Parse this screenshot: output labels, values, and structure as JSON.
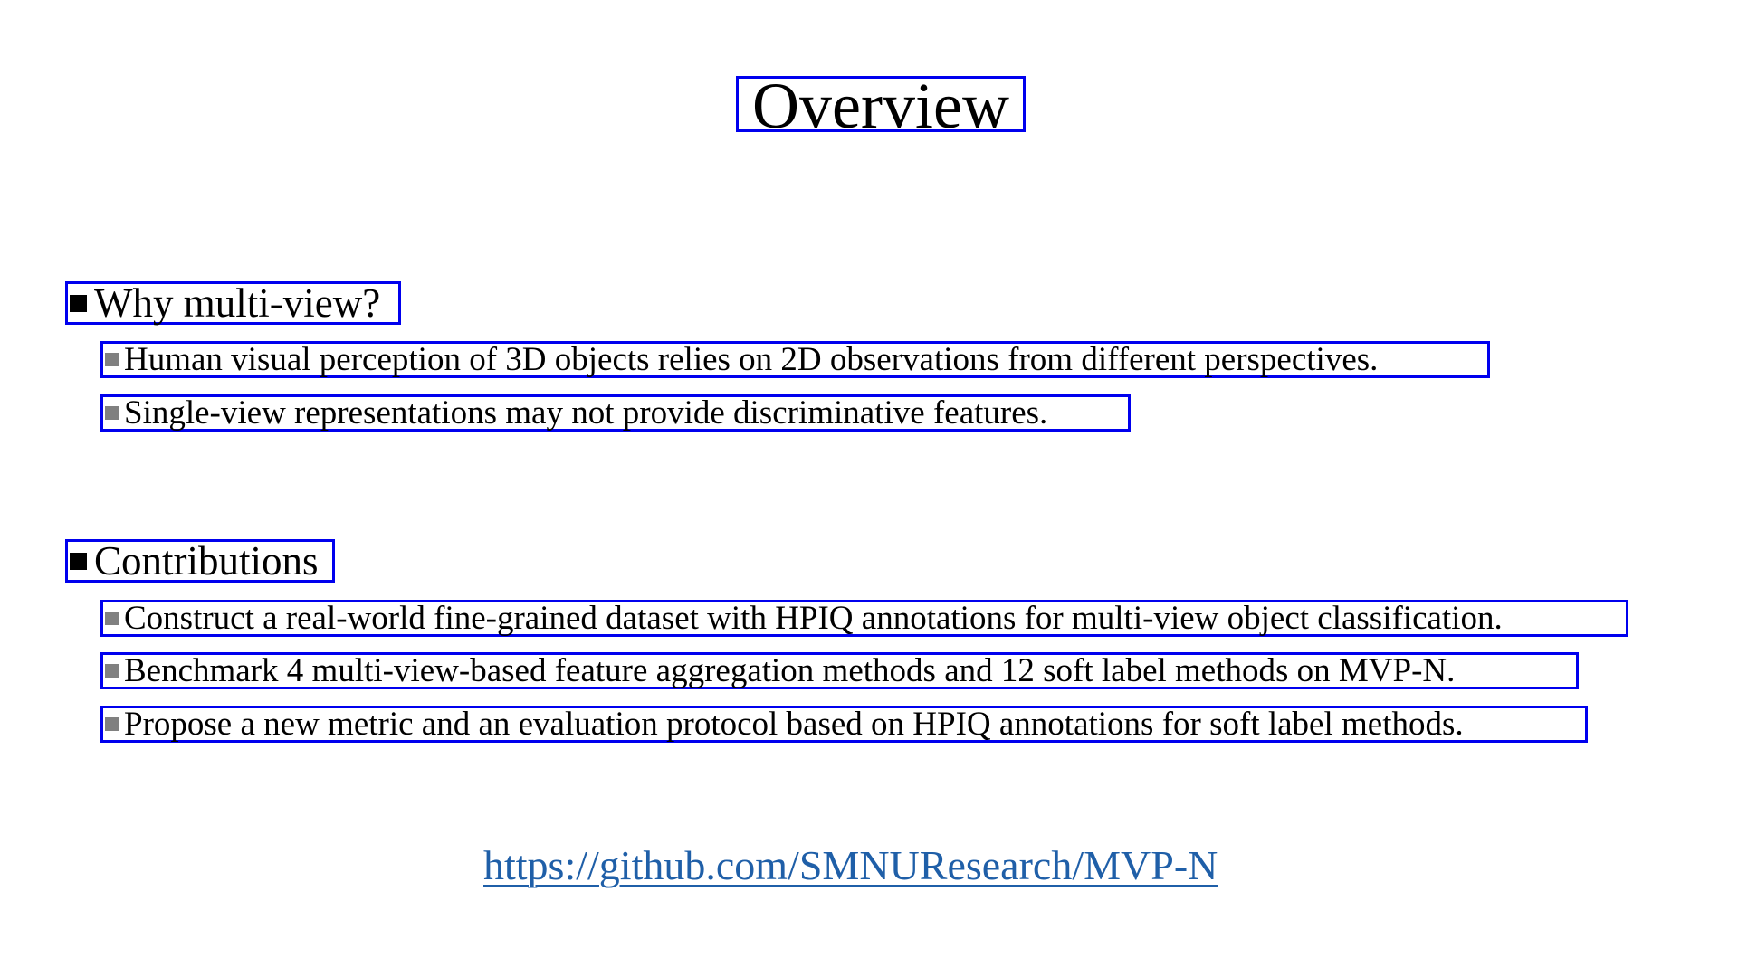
{
  "title": "Overview",
  "sections": [
    {
      "heading": "Why multi-view?",
      "items": [
        "Human visual perception of 3D objects relies on 2D observations from different perspectives.",
        "Single-view representations may not provide discriminative features."
      ]
    },
    {
      "heading": "Contributions",
      "items": [
        "Construct a real-world fine-grained dataset with HPIQ annotations for multi-view object classification.",
        "Benchmark 4 multi-view-based feature aggregation methods and 12 soft label methods on MVP-N.",
        "Propose a new metric and an evaluation protocol based on HPIQ annotations for soft label methods."
      ]
    }
  ],
  "link": {
    "text": "https://github.com/SMNUResearch/MVP-N",
    "color": "#1f5fa8"
  },
  "colors": {
    "box_border": "#0000ee",
    "sub_bullet": "#808080"
  }
}
